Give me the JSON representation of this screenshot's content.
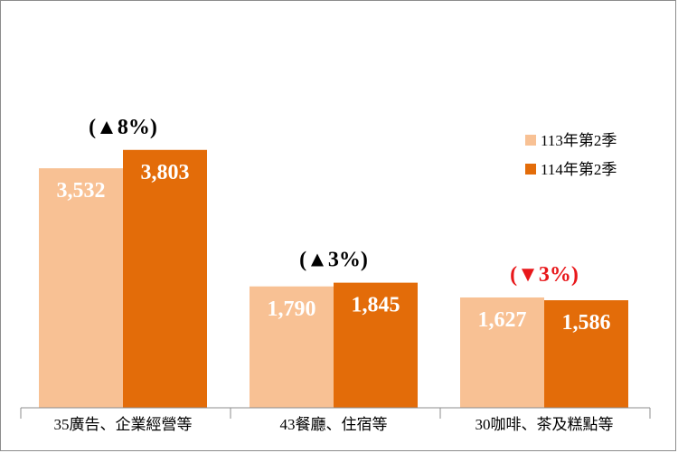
{
  "chart_data": {
    "type": "bar",
    "categories": [
      "35廣告、企業經營等",
      "43餐廳、住宿等",
      "30咖啡、茶及糕點等"
    ],
    "series": [
      {
        "name": "113年第2季",
        "values": [
          3532,
          1790,
          1627
        ],
        "labels": [
          "3,532",
          "1,790",
          "1,627"
        ],
        "color": "#f8c194"
      },
      {
        "name": "114年第2季",
        "values": [
          3803,
          1845,
          1586
        ],
        "labels": [
          "3,803",
          "1,845",
          "1,586"
        ],
        "color": "#e36c09"
      }
    ],
    "annotations": [
      {
        "category": "35廣告、企業經營等",
        "text": "(▲8%)",
        "color": "#000000"
      },
      {
        "category": "43餐廳、住宿等",
        "text": "(▲3%)",
        "color": "#000000"
      },
      {
        "category": "30咖啡、茶及糕點等",
        "text": "(▼3%)",
        "color": "#e8171a"
      }
    ],
    "ylim": [
      0,
      4500
    ],
    "legend": "right",
    "grid": false,
    "title": "",
    "xlabel": "",
    "ylabel": ""
  }
}
